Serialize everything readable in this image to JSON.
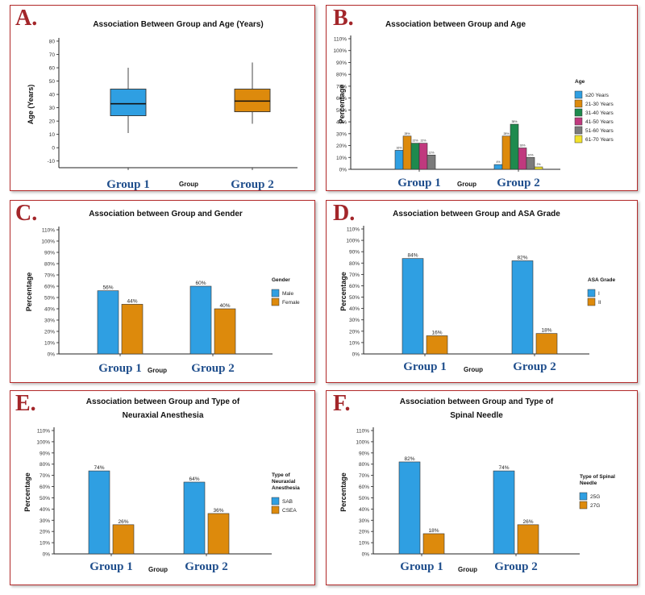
{
  "colors": {
    "border": "#b22a2a",
    "letter": "#a3262a",
    "group_label": "#1f4e8c",
    "blue": "#2f9fe2",
    "orange": "#dd8a0c",
    "green": "#1e8a4e",
    "pink": "#c0397e",
    "gray": "#7b7b7b",
    "yellow": "#f2e22c"
  },
  "chart_data": [
    {
      "id": "A",
      "letter": "A.",
      "type": "box",
      "title": "Association Between Group and Age (Years)",
      "xlabel": "Group",
      "ylabel": "Age (Years)",
      "categories": [
        "Group 1",
        "Group 2"
      ],
      "ylim": [
        -15,
        80
      ],
      "yticks": [
        "-10",
        "0",
        "10",
        "20",
        "30",
        "40",
        "50",
        "60",
        "70",
        "80"
      ],
      "boxes": [
        {
          "min": 11,
          "q1": 24,
          "median": 33,
          "q3": 44,
          "max": 60,
          "color": "blue"
        },
        {
          "min": 18,
          "q1": 27,
          "median": 35,
          "q3": 44,
          "max": 64,
          "color": "orange"
        }
      ]
    },
    {
      "id": "B",
      "letter": "B.",
      "type": "bar",
      "title": "Association between Group and Age",
      "xlabel": "Group",
      "ylabel": "Percentage",
      "categories": [
        "Group 1",
        "Group 2"
      ],
      "ylim": [
        0,
        110
      ],
      "yticks": [
        "0%",
        "10%",
        "20%",
        "30%",
        "40%",
        "50%",
        "60%",
        "70%",
        "80%",
        "90%",
        "100%",
        "110%"
      ],
      "legend_title": "Age",
      "series": [
        {
          "name": "≤20 Years",
          "color": "blue",
          "values": [
            16,
            4
          ],
          "labels": [
            "16%",
            "4%"
          ]
        },
        {
          "name": "21-30 Years",
          "color": "orange",
          "values": [
            28,
            28
          ],
          "labels": [
            "28%",
            "28%"
          ]
        },
        {
          "name": "31-40 Years",
          "color": "green",
          "values": [
            22,
            38
          ],
          "labels": [
            "22%",
            "38%"
          ]
        },
        {
          "name": "41-50 Years",
          "color": "pink",
          "values": [
            22,
            18
          ],
          "labels": [
            "22%",
            "18%"
          ]
        },
        {
          "name": "51-60 Years",
          "color": "gray",
          "values": [
            12,
            10
          ],
          "labels": [
            "12%",
            "10%"
          ]
        },
        {
          "name": "61-70 Years",
          "color": "yellow",
          "values": [
            0,
            2
          ],
          "labels": [
            "",
            "2%"
          ]
        }
      ]
    },
    {
      "id": "C",
      "letter": "C.",
      "type": "bar",
      "title": "Association between Group and Gender",
      "xlabel": "Group",
      "ylabel": "Percentage",
      "categories": [
        "Group 1",
        "Group 2"
      ],
      "ylim": [
        0,
        110
      ],
      "yticks": [
        "0%",
        "10%",
        "20%",
        "30%",
        "40%",
        "50%",
        "60%",
        "70%",
        "80%",
        "90%",
        "100%",
        "110%"
      ],
      "legend_title": "Gender",
      "series": [
        {
          "name": "Male",
          "color": "blue",
          "values": [
            56,
            60
          ],
          "labels": [
            "56%",
            "60%"
          ]
        },
        {
          "name": "Female",
          "color": "orange",
          "values": [
            44,
            40
          ],
          "labels": [
            "44%",
            "40%"
          ]
        }
      ]
    },
    {
      "id": "D",
      "letter": "D.",
      "type": "bar",
      "title": "Association between Group and ASA Grade",
      "xlabel": "Group",
      "ylabel": "Percentage",
      "categories": [
        "Group 1",
        "Group 2"
      ],
      "ylim": [
        0,
        110
      ],
      "yticks": [
        "0%",
        "10%",
        "20%",
        "30%",
        "40%",
        "50%",
        "60%",
        "70%",
        "80%",
        "90%",
        "100%",
        "110%"
      ],
      "legend_title": "ASA Grade",
      "series": [
        {
          "name": "I",
          "color": "blue",
          "values": [
            84,
            82
          ],
          "labels": [
            "84%",
            "82%"
          ]
        },
        {
          "name": "II",
          "color": "orange",
          "values": [
            16,
            18
          ],
          "labels": [
            "16%",
            "18%"
          ]
        }
      ]
    },
    {
      "id": "E",
      "letter": "E.",
      "type": "bar",
      "title": "Association between Group and Type of",
      "title2": "Neuraxial Anesthesia",
      "xlabel": "Group",
      "ylabel": "Percentage",
      "categories": [
        "Group 1",
        "Group 2"
      ],
      "ylim": [
        0,
        110
      ],
      "yticks": [
        "0%",
        "10%",
        "20%",
        "30%",
        "40%",
        "50%",
        "60%",
        "70%",
        "80%",
        "90%",
        "100%",
        "110%"
      ],
      "legend_title": "Type of",
      "legend_title2": "Neuraxial",
      "legend_title3": "Anesthesia",
      "series": [
        {
          "name": "SAB",
          "color": "blue",
          "values": [
            74,
            64
          ],
          "labels": [
            "74%",
            "64%"
          ]
        },
        {
          "name": "CSEA",
          "color": "orange",
          "values": [
            26,
            36
          ],
          "labels": [
            "26%",
            "36%"
          ]
        }
      ]
    },
    {
      "id": "F",
      "letter": "F.",
      "type": "bar",
      "title": "Association between Group and Type of",
      "title2": "Spinal Needle",
      "xlabel": "Group",
      "ylabel": "Percentage",
      "categories": [
        "Group 1",
        "Group 2"
      ],
      "ylim": [
        0,
        110
      ],
      "yticks": [
        "0%",
        "10%",
        "20%",
        "30%",
        "40%",
        "50%",
        "60%",
        "70%",
        "80%",
        "90%",
        "100%",
        "110%"
      ],
      "legend_title": "Type of Spinal",
      "legend_title2": "Needle",
      "series": [
        {
          "name": "25G",
          "color": "blue",
          "values": [
            82,
            74
          ],
          "labels": [
            "82%",
            "74%"
          ]
        },
        {
          "name": "27G",
          "color": "orange",
          "values": [
            18,
            26
          ],
          "labels": [
            "18%",
            "26%"
          ]
        }
      ]
    }
  ]
}
